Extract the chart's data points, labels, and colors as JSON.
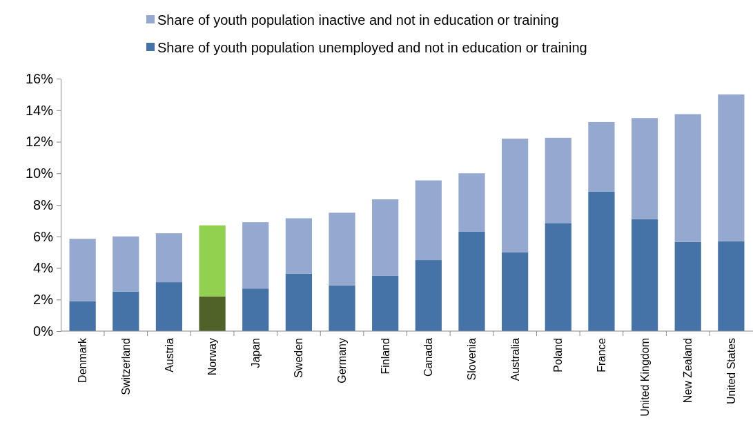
{
  "chart_data": {
    "type": "bar",
    "stacked": true,
    "legend": "top",
    "grid": false,
    "categories": [
      "Denmark",
      "Switzerland",
      "Austria",
      "Norway",
      "Japan",
      "Sweden",
      "Germany",
      "Finland",
      "Canada",
      "Slovenia",
      "Australia",
      "Poland",
      "France",
      "United Kingdom",
      "New Zealand",
      "United States"
    ],
    "series": [
      {
        "name": "Share of youth population unemployed and not in education or training",
        "color": "#4572a7",
        "colors": [
          "#4572a7",
          "#4572a7",
          "#4572a7",
          "#4f6228",
          "#4572a7",
          "#4572a7",
          "#4572a7",
          "#4572a7",
          "#4572a7",
          "#4572a7",
          "#4572a7",
          "#4572a7",
          "#4572a7",
          "#4572a7",
          "#4572a7",
          "#4572a7"
        ],
        "values": [
          1.9,
          2.5,
          3.1,
          2.2,
          2.7,
          3.65,
          2.9,
          3.5,
          4.5,
          6.3,
          5.0,
          6.85,
          8.85,
          7.1,
          5.65,
          5.7
        ]
      },
      {
        "name": "Share of youth population inactive and not in education or training",
        "color": "#95a9d0",
        "colors": [
          "#95a9d0",
          "#95a9d0",
          "#95a9d0",
          "#92d050",
          "#95a9d0",
          "#95a9d0",
          "#95a9d0",
          "#95a9d0",
          "#95a9d0",
          "#95a9d0",
          "#95a9d0",
          "#95a9d0",
          "#95a9d0",
          "#95a9d0",
          "#95a9d0",
          "#95a9d0"
        ],
        "values": [
          3.95,
          3.5,
          3.1,
          4.5,
          4.2,
          3.5,
          4.6,
          4.85,
          5.05,
          3.7,
          7.2,
          5.4,
          4.4,
          6.4,
          8.1,
          9.3
        ]
      }
    ],
    "ylim": [
      0,
      16
    ],
    "yticks": [
      {
        "value": 0,
        "label": "0%"
      },
      {
        "value": 2,
        "label": "2%"
      },
      {
        "value": 4,
        "label": "4%"
      },
      {
        "value": 6,
        "label": "6%"
      },
      {
        "value": 8,
        "label": "8%"
      },
      {
        "value": 10,
        "label": "10%"
      },
      {
        "value": 12,
        "label": "12%"
      },
      {
        "value": 14,
        "label": "14%"
      },
      {
        "value": 16,
        "label": "16%"
      }
    ]
  }
}
